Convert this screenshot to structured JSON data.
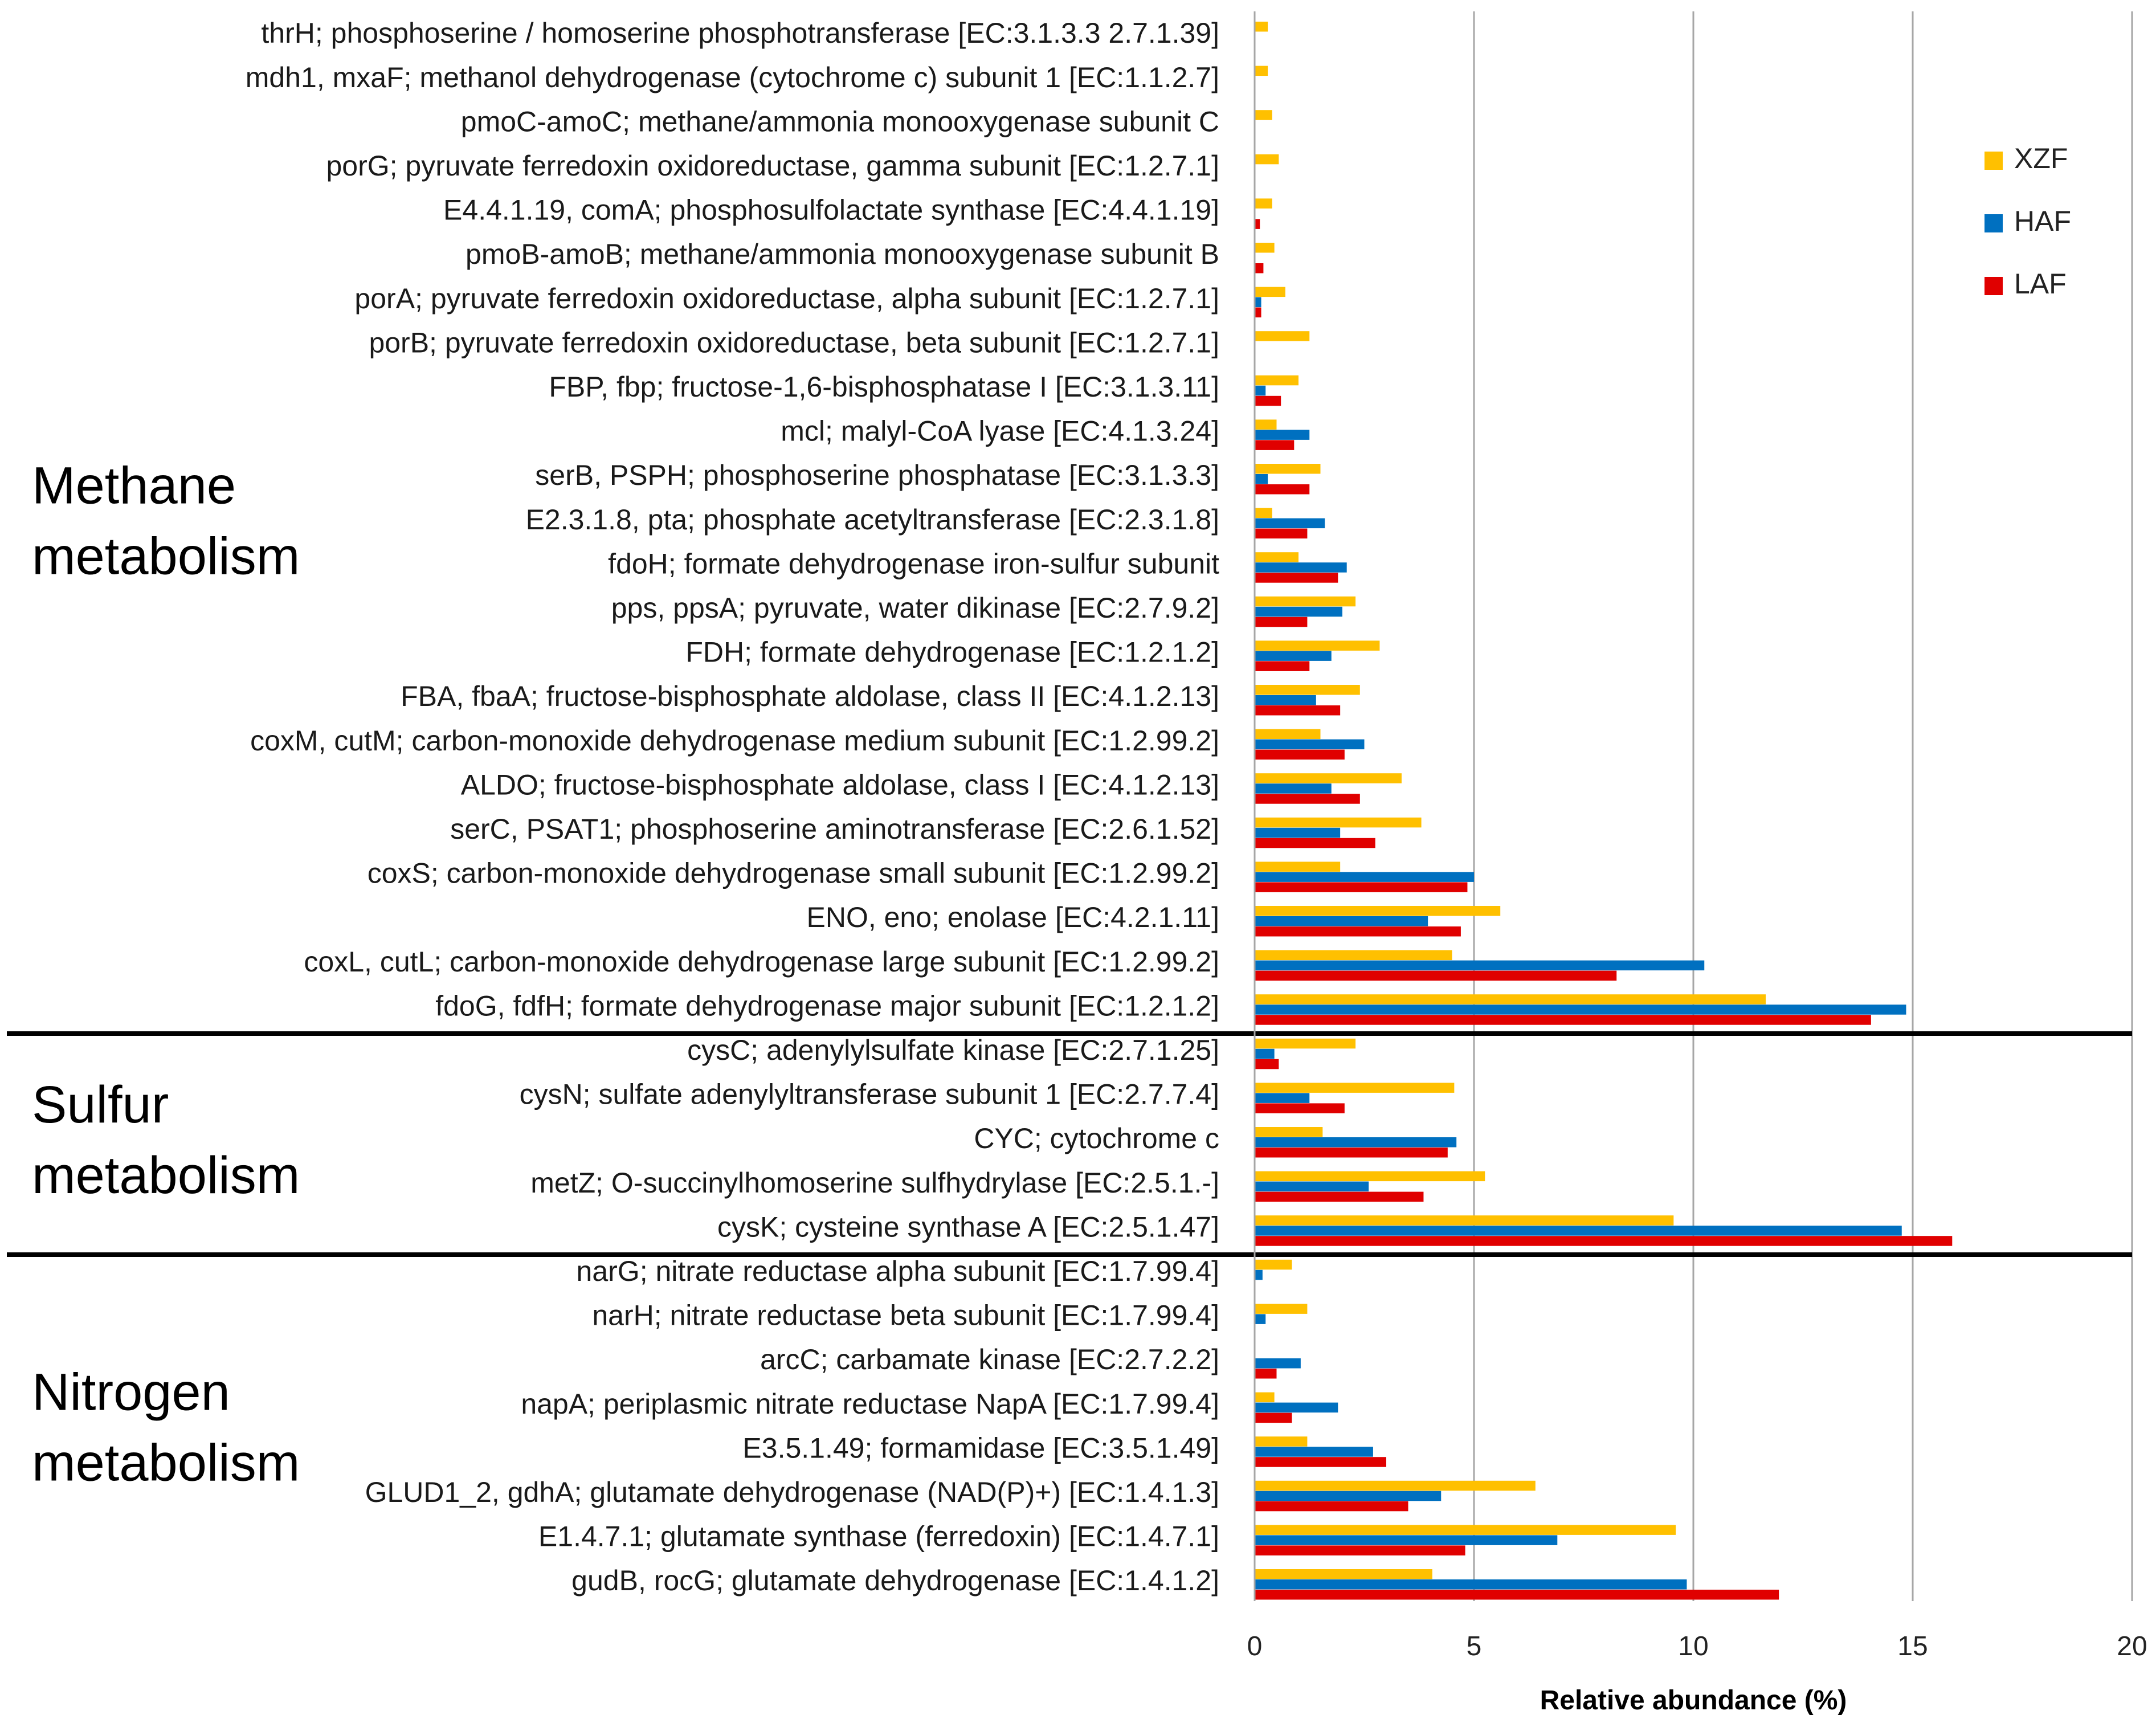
{
  "chart_data": {
    "type": "bar",
    "orientation": "horizontal",
    "xlabel": "Relative abundance (%)",
    "xlim": [
      0,
      20
    ],
    "xticks": [
      0,
      5,
      10,
      15,
      20
    ],
    "grid": "vertical",
    "legend_position": "top-right",
    "series": [
      {
        "name": "XZF",
        "color": "#FFC000"
      },
      {
        "name": "HAF",
        "color": "#0070C0"
      },
      {
        "name": "LAF",
        "color": "#E00000"
      }
    ],
    "groups": [
      {
        "name": "Methane metabolism",
        "label_lines": [
          "Methane",
          "metabolism"
        ],
        "categories": [
          {
            "label": "thrH; phosphoserine / homoserine phosphotransferase [EC:3.1.3.3 2.7.1.39]",
            "values": [
              0.3,
              0,
              0
            ]
          },
          {
            "label": "mdh1, mxaF; methanol dehydrogenase (cytochrome c) subunit 1 [EC:1.1.2.7]",
            "values": [
              0.3,
              0,
              0
            ]
          },
          {
            "label": "pmoC-amoC; methane/ammonia monooxygenase subunit C",
            "values": [
              0.4,
              0,
              0
            ]
          },
          {
            "label": "porG; pyruvate ferredoxin oxidoreductase, gamma subunit [EC:1.2.7.1]",
            "values": [
              0.55,
              0,
              0
            ]
          },
          {
            "label": "E4.4.1.19, comA; phosphosulfolactate synthase [EC:4.4.1.19]",
            "values": [
              0.4,
              0,
              0.12
            ]
          },
          {
            "label": "pmoB-amoB; methane/ammonia monooxygenase subunit B",
            "values": [
              0.45,
              0,
              0.2
            ]
          },
          {
            "label": "porA; pyruvate ferredoxin oxidoreductase, alpha subunit [EC:1.2.7.1]",
            "values": [
              0.7,
              0.15,
              0.15
            ]
          },
          {
            "label": "porB; pyruvate ferredoxin oxidoreductase, beta subunit [EC:1.2.7.1]",
            "values": [
              1.25,
              0,
              0
            ]
          },
          {
            "label": "FBP, fbp; fructose-1,6-bisphosphatase I [EC:3.1.3.11]",
            "values": [
              1.0,
              0.25,
              0.6
            ]
          },
          {
            "label": "mcl; malyl-CoA lyase [EC:4.1.3.24]",
            "values": [
              0.5,
              1.25,
              0.9
            ]
          },
          {
            "label": "serB, PSPH; phosphoserine phosphatase [EC:3.1.3.3]",
            "values": [
              1.5,
              0.3,
              1.25
            ]
          },
          {
            "label": "E2.3.1.8, pta; phosphate acetyltransferase [EC:2.3.1.8]",
            "values": [
              0.4,
              1.6,
              1.2
            ]
          },
          {
            "label": "fdoH; formate dehydrogenase iron-sulfur subunit",
            "values": [
              1.0,
              2.1,
              1.9
            ]
          },
          {
            "label": "pps, ppsA; pyruvate, water dikinase [EC:2.7.9.2]",
            "values": [
              2.3,
              2.0,
              1.2
            ]
          },
          {
            "label": "FDH; formate dehydrogenase [EC:1.2.1.2]",
            "values": [
              2.85,
              1.75,
              1.25
            ]
          },
          {
            "label": "FBA, fbaA; fructose-bisphosphate aldolase, class II [EC:4.1.2.13]",
            "values": [
              2.4,
              1.4,
              1.95
            ]
          },
          {
            "label": "coxM, cutM; carbon-monoxide dehydrogenase medium subunit [EC:1.2.99.2]",
            "values": [
              1.5,
              2.5,
              2.05
            ]
          },
          {
            "label": "ALDO; fructose-bisphosphate aldolase, class I [EC:4.1.2.13]",
            "values": [
              3.35,
              1.75,
              2.4
            ]
          },
          {
            "label": "serC, PSAT1; phosphoserine aminotransferase [EC:2.6.1.52]",
            "values": [
              3.8,
              1.95,
              2.75
            ]
          },
          {
            "label": "coxS; carbon-monoxide dehydrogenase small subunit [EC:1.2.99.2]",
            "values": [
              1.95,
              5.0,
              4.85
            ]
          },
          {
            "label": "ENO, eno; enolase [EC:4.2.1.11]",
            "values": [
              5.6,
              3.95,
              4.7
            ]
          },
          {
            "label": "coxL, cutL; carbon-monoxide dehydrogenase large subunit [EC:1.2.99.2]",
            "values": [
              4.5,
              10.25,
              8.25
            ]
          },
          {
            "label": "fdoG, fdfH; formate dehydrogenase major subunit [EC:1.2.1.2]",
            "values": [
              11.65,
              14.85,
              14.05
            ]
          }
        ]
      },
      {
        "name": "Sulfur metabolism",
        "label_lines": [
          "Sulfur",
          "metabolism"
        ],
        "categories": [
          {
            "label": "cysC; adenylylsulfate kinase [EC:2.7.1.25]",
            "values": [
              2.3,
              0.45,
              0.55
            ]
          },
          {
            "label": "cysN; sulfate adenylyltransferase subunit 1 [EC:2.7.7.4]",
            "values": [
              4.55,
              1.25,
              2.05
            ]
          },
          {
            "label": "CYC; cytochrome c",
            "values": [
              1.55,
              4.6,
              4.4
            ]
          },
          {
            "label": "metZ; O-succinylhomoserine sulfhydrylase [EC:2.5.1.-]",
            "values": [
              5.25,
              2.6,
              3.85
            ]
          },
          {
            "label": "cysK; cysteine synthase A [EC:2.5.1.47]",
            "values": [
              9.55,
              14.75,
              15.9
            ]
          }
        ]
      },
      {
        "name": "Nitrogen metabolism",
        "label_lines": [
          "Nitrogen",
          "metabolism"
        ],
        "categories": [
          {
            "label": "narG; nitrate reductase alpha subunit [EC:1.7.99.4]",
            "values": [
              0.85,
              0.18,
              0
            ]
          },
          {
            "label": "narH; nitrate reductase beta subunit [EC:1.7.99.4]",
            "values": [
              1.2,
              0.25,
              0
            ]
          },
          {
            "label": "arcC; carbamate kinase [EC:2.7.2.2]",
            "values": [
              0,
              1.05,
              0.5
            ]
          },
          {
            "label": "napA; periplasmic nitrate reductase NapA [EC:1.7.99.4]",
            "values": [
              0.45,
              1.9,
              0.85
            ]
          },
          {
            "label": "E3.5.1.49; formamidase [EC:3.5.1.49]",
            "values": [
              1.2,
              2.7,
              3.0
            ]
          },
          {
            "label": "GLUD1_2, gdhA; glutamate dehydrogenase (NAD(P)+) [EC:1.4.1.3]",
            "values": [
              6.4,
              4.25,
              3.5
            ]
          },
          {
            "label": "E1.4.7.1; glutamate synthase (ferredoxin) [EC:1.4.7.1]",
            "values": [
              9.6,
              6.9,
              4.8
            ]
          },
          {
            "label": "gudB, rocG; glutamate dehydrogenase [EC:1.4.1.2]",
            "values": [
              4.05,
              9.85,
              11.95
            ]
          }
        ]
      }
    ]
  }
}
